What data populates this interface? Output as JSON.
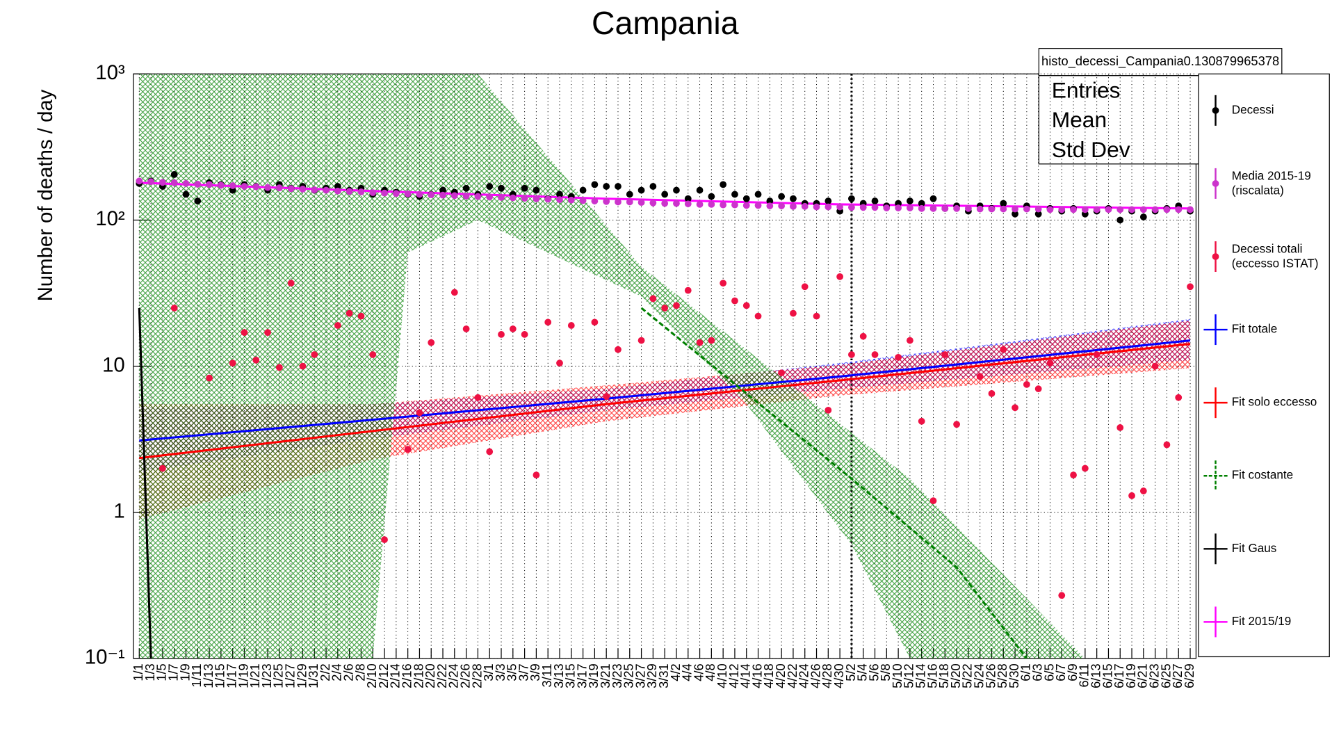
{
  "chart_data": {
    "type": "scatter",
    "title": "Campania",
    "y_label": "Number of deaths / day",
    "log_y": true,
    "grid": true,
    "legend": "right",
    "stats_box": {
      "title": "histo_decessi_Campania0.130879965378",
      "rows": [
        "Entries",
        "Mean",
        "Std Dev"
      ]
    },
    "ylim": [
      0.1,
      1000
    ],
    "yticks": [
      {
        "value": 0.1,
        "label": "10⁻¹"
      },
      1,
      10,
      {
        "value": 100,
        "label": "10²"
      },
      {
        "value": 1000,
        "label": "10³"
      }
    ],
    "vline": "5/2",
    "categories": [
      "1/1",
      "1/3",
      "1/5",
      "1/7",
      "1/9",
      "1/11",
      "1/13",
      "1/15",
      "1/17",
      "1/19",
      "1/21",
      "1/23",
      "1/25",
      "1/27",
      "1/29",
      "1/31",
      "2/2",
      "2/4",
      "2/6",
      "2/8",
      "2/10",
      "2/12",
      "2/14",
      "2/16",
      "2/18",
      "2/20",
      "2/22",
      "2/24",
      "2/26",
      "2/28",
      "3/1",
      "3/3",
      "3/5",
      "3/7",
      "3/9",
      "3/11",
      "3/13",
      "3/15",
      "3/17",
      "3/19",
      "3/21",
      "3/23",
      "3/25",
      "3/27",
      "3/29",
      "3/31",
      "4/2",
      "4/4",
      "4/6",
      "4/8",
      "4/10",
      "4/12",
      "4/14",
      "4/16",
      "4/18",
      "4/20",
      "4/22",
      "4/24",
      "4/26",
      "4/28",
      "4/30",
      "5/2",
      "5/4",
      "5/6",
      "5/8",
      "5/10",
      "5/12",
      "5/14",
      "5/16",
      "5/18",
      "5/20",
      "5/22",
      "5/24",
      "5/26",
      "5/28",
      "5/30",
      "6/1",
      "6/3",
      "6/5",
      "6/7",
      "6/9",
      "6/11",
      "6/13",
      "6/15",
      "6/17",
      "6/19",
      "6/21",
      "6/23",
      "6/25",
      "6/27",
      "6/29"
    ],
    "series": [
      {
        "name": "Decessi",
        "color": "#000000",
        "style": "points",
        "values": [
          178,
          185,
          170,
          205,
          150,
          135,
          180,
          175,
          160,
          175,
          170,
          160,
          175,
          165,
          170,
          160,
          165,
          170,
          160,
          165,
          150,
          160,
          155,
          150,
          145,
          150,
          160,
          155,
          165,
          150,
          170,
          165,
          150,
          165,
          160,
          140,
          150,
          145,
          160,
          175,
          170,
          170,
          150,
          160,
          170,
          150,
          160,
          140,
          160,
          145,
          175,
          150,
          140,
          150,
          135,
          145,
          140,
          130,
          130,
          135,
          115,
          140,
          130,
          135,
          125,
          130,
          135,
          130,
          140,
          120,
          125,
          115,
          125,
          120,
          130,
          110,
          125,
          110,
          120,
          115,
          120,
          110,
          115,
          120,
          100,
          115,
          105,
          115,
          120,
          125,
          115
        ]
      },
      {
        "name": [
          "Media 2015-19",
          "(riscalata)"
        ],
        "color": "#cc33cc",
        "style": "points",
        "values": [
          185,
          183,
          181,
          180,
          178,
          176,
          175,
          173,
          172,
          170,
          169,
          167,
          166,
          164,
          163,
          161,
          160,
          158,
          157,
          156,
          154,
          153,
          152,
          151,
          150,
          149,
          148,
          147,
          146,
          145,
          144,
          143,
          142,
          141,
          140,
          139,
          138,
          137,
          136,
          135,
          134,
          133,
          133,
          132,
          131,
          130,
          130,
          129,
          128,
          128,
          127,
          127,
          126,
          126,
          125,
          125,
          124,
          124,
          123,
          123,
          123,
          122,
          122,
          122,
          121,
          121,
          121,
          120,
          120,
          120,
          120,
          120,
          119,
          119,
          119,
          119,
          119,
          119,
          118,
          118,
          118,
          118,
          118,
          118,
          118,
          118,
          118,
          118,
          118,
          118,
          118
        ]
      },
      {
        "name": [
          "Decessi totali",
          "(eccesso ISTAT)"
        ],
        "color": "#ee1144",
        "style": "points",
        "values": [
          null,
          null,
          2,
          25,
          null,
          null,
          8.3,
          null,
          10.5,
          17,
          11,
          17,
          9.8,
          37,
          10,
          12,
          null,
          19,
          23,
          22,
          12,
          0.65,
          null,
          2.7,
          4.8,
          14.5,
          null,
          32,
          18,
          6.1,
          2.6,
          16.5,
          18,
          16.5,
          1.8,
          20,
          10.5,
          19,
          null,
          20,
          6.2,
          13,
          null,
          15,
          29,
          25,
          26,
          33,
          14.5,
          15,
          37,
          28,
          26,
          22,
          null,
          9,
          23,
          35,
          22,
          5,
          41,
          12,
          16,
          12,
          null,
          11.5,
          15,
          4.2,
          1.2,
          12,
          4,
          null,
          8.5,
          6.5,
          13,
          5.2,
          7.5,
          7,
          10.5,
          0.27,
          1.8,
          2,
          12,
          null,
          3.8,
          1.3,
          1.4,
          10,
          2.9,
          6.1,
          35
        ]
      },
      {
        "name": "Fit totale",
        "color": "#0000ff",
        "style": "line",
        "x": [
          "1/1",
          "2/10",
          "3/21",
          "4/30",
          "6/29"
        ],
        "values": [
          3.1,
          4.3,
          6,
          8.5,
          15
        ],
        "band": {
          "lower": [
            1.9,
            3.2,
            5,
            7,
            11
          ],
          "upper": [
            5.2,
            5.5,
            7,
            10.5,
            21
          ]
        }
      },
      {
        "name": "Fit solo eccesso",
        "color": "#ff0000",
        "style": "line",
        "x": [
          "1/1",
          "2/10",
          "3/21",
          "4/30",
          "6/29"
        ],
        "values": [
          2.35,
          3.6,
          5.5,
          8,
          14.2
        ],
        "band": {
          "lower": [
            0.9,
            2.3,
            4.2,
            6.3,
            9.7
          ],
          "upper": [
            5.5,
            5.5,
            7.4,
            10.2,
            20.5
          ]
        }
      },
      {
        "name": "Fit costante",
        "color": "#008000",
        "style": "line",
        "dashed": true,
        "x": [
          "3/27",
          "4/14",
          "5/2",
          "5/20",
          "6/1"
        ],
        "values": [
          25,
          6.5,
          1.7,
          0.42,
          0.1
        ],
        "band": {
          "x": [
            "1/1",
            "2/10",
            "2/16",
            "2/28",
            "3/27",
            "4/14",
            "5/2",
            "5/12",
            "6/11"
          ],
          "lower": [
            0.1,
            0.1,
            60,
            100,
            30,
            5.5,
            0.6,
            0.1,
            0.1
          ],
          "upper": [
            1000,
            1000,
            1000,
            1000,
            48,
            13,
            3.5,
            1.7,
            0.1
          ]
        }
      },
      {
        "name": "Fit Gaus",
        "color": "#000000",
        "style": "line",
        "x": [
          "1/1",
          "1/3"
        ],
        "values": [
          25,
          0.1
        ]
      },
      {
        "name": "Fit 2015/19",
        "color": "#ff00ff",
        "style": "line",
        "x": [
          "1/1",
          "2/10",
          "3/21",
          "4/30",
          "6/29"
        ],
        "values": [
          180,
          158,
          140,
          128,
          120
        ]
      }
    ]
  }
}
